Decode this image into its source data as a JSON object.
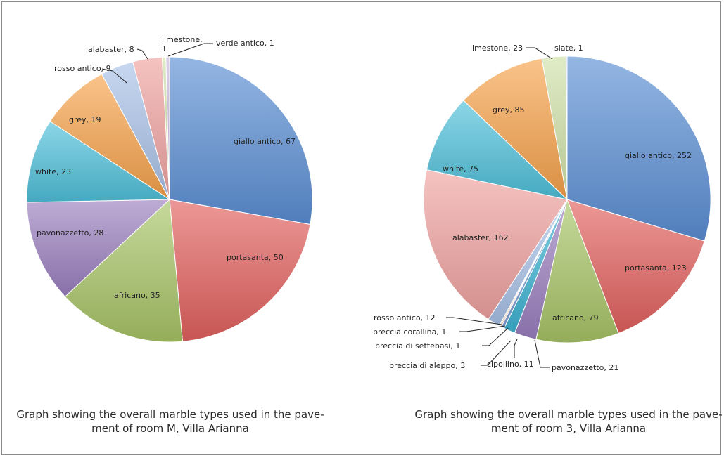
{
  "colors": {
    "giallo antico": "#5b8fd4",
    "portasanta": "#e2615e",
    "africano": "#a8c566",
    "pavonazzetto": "#9b7fbf",
    "white": "#4ec0da",
    "grey": "#f7a34b",
    "rosso antico": "#a9c2e8",
    "alabaster": "#f0a2a0",
    "limestone": "#cfe1a8",
    "verde antico": "#c8b6dd",
    "cipollino": "#3fb3d3",
    "breccia di aleppo": "#7f9fd6",
    "breccia di settebasi": "#e88a6a",
    "breccia corallina": "#d4b05a",
    "slate": "#b9cde8"
  },
  "chart_data": [
    {
      "type": "pie",
      "caption": "Graph showing the overall marble types used in the pave-\nment of room M, Villa Arianna",
      "slices": [
        {
          "name": "giallo antico",
          "value": 67,
          "label": "giallo antico, 67"
        },
        {
          "name": "portasanta",
          "value": 50,
          "label": "portasanta, 50"
        },
        {
          "name": "africano",
          "value": 35,
          "label": "africano, 35"
        },
        {
          "name": "pavonazzetto",
          "value": 28,
          "label": "pavonazzetto, 28"
        },
        {
          "name": "white",
          "value": 23,
          "label": "white, 23"
        },
        {
          "name": "grey",
          "value": 19,
          "label": "grey, 19"
        },
        {
          "name": "rosso antico",
          "value": 9,
          "label": "rosso antico, 9"
        },
        {
          "name": "alabaster",
          "value": 8,
          "label": "alabaster, 8"
        },
        {
          "name": "limestone",
          "value": 1,
          "label": "limestone,\n1"
        },
        {
          "name": "verde antico",
          "value": 1,
          "label": "verde antico, 1"
        }
      ]
    },
    {
      "type": "pie",
      "caption": "Graph showing the overall marble types used in the pave-\nment of room 3, Villa Arianna",
      "slices": [
        {
          "name": "giallo antico",
          "value": 252,
          "label": "giallo antico, 252"
        },
        {
          "name": "portasanta",
          "value": 123,
          "label": "portasanta, 123"
        },
        {
          "name": "africano",
          "value": 79,
          "label": "africano, 79"
        },
        {
          "name": "pavonazzetto",
          "value": 21,
          "label": "pavonazzetto, 21"
        },
        {
          "name": "cipollino",
          "value": 11,
          "label": "cipollino, 11"
        },
        {
          "name": "breccia di aleppo",
          "value": 3,
          "label": "breccia di aleppo, 3"
        },
        {
          "name": "breccia di settebasi",
          "value": 1,
          "label": "breccia di settebasi, 1"
        },
        {
          "name": "breccia corallina",
          "value": 1,
          "label": "breccia corallina, 1"
        },
        {
          "name": "rosso antico",
          "value": 12,
          "label": "rosso antico, 12"
        },
        {
          "name": "alabaster",
          "value": 162,
          "label": "alabaster, 162"
        },
        {
          "name": "white",
          "value": 75,
          "label": "white, 75"
        },
        {
          "name": "grey",
          "value": 85,
          "label": "grey, 85"
        },
        {
          "name": "limestone",
          "value": 23,
          "label": "limestone, 23"
        },
        {
          "name": "slate",
          "value": 1,
          "label": "slate, 1"
        }
      ]
    }
  ]
}
